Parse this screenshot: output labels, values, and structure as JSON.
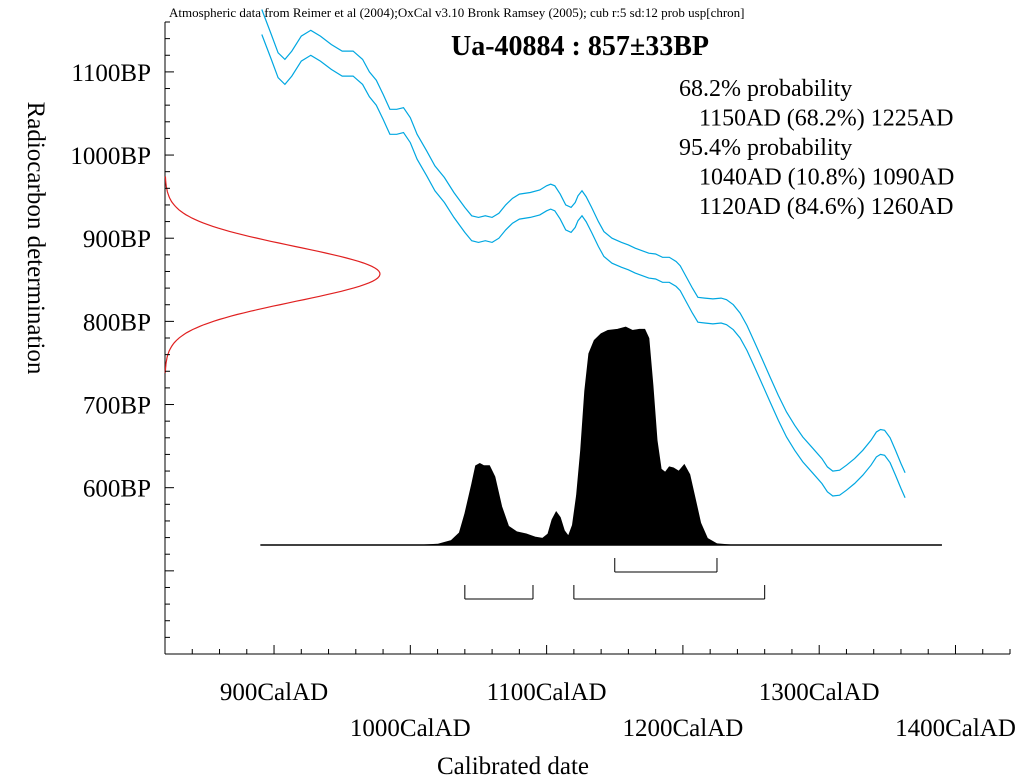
{
  "chart_data": {
    "type": "area",
    "header": "Atmospheric data from Reimer et al (2004);OxCal v3.10 Bronk Ramsey (2005); cub r:5 sd:12 prob usp[chron]",
    "title": "Ua-40884 : 857±33BP",
    "xlabel": "Calibrated date",
    "ylabel": "Radiocarbon determination",
    "xlim": [
      820,
      1440
    ],
    "ylim": [
      400,
      1160
    ],
    "x_ticks": [
      {
        "value": 900,
        "label": "900CalAD",
        "row": 0
      },
      {
        "value": 1000,
        "label": "1000CalAD",
        "row": 1
      },
      {
        "value": 1100,
        "label": "1100CalAD",
        "row": 0
      },
      {
        "value": 1200,
        "label": "1200CalAD",
        "row": 1
      },
      {
        "value": 1300,
        "label": "1300CalAD",
        "row": 0
      },
      {
        "value": 1400,
        "label": "1400CalAD",
        "row": 1
      }
    ],
    "y_ticks": [
      {
        "value": 600,
        "label": "600BP"
      },
      {
        "value": 700,
        "label": "700BP"
      },
      {
        "value": 800,
        "label": "800BP"
      },
      {
        "value": 900,
        "label": "900BP"
      },
      {
        "value": 1000,
        "label": "1000BP"
      },
      {
        "value": 1100,
        "label": "1100BP"
      }
    ],
    "probability_text": [
      {
        "text": "68.2% probability",
        "indent": false
      },
      {
        "text": "1150AD (68.2%) 1225AD",
        "indent": true
      },
      {
        "text": "95.4% probability",
        "indent": false
      },
      {
        "text": "1040AD (10.8%) 1090AD",
        "indent": true
      },
      {
        "text": "1120AD (84.6%) 1260AD",
        "indent": true
      }
    ],
    "measurement": {
      "mean_bp": 857,
      "sigma_bp": 33
    },
    "ranges_68": [
      [
        1150,
        1225
      ]
    ],
    "ranges_95": [
      [
        1040,
        1090
      ],
      [
        1120,
        1260
      ]
    ],
    "calibration_curve": [
      [
        891,
        1160
      ],
      [
        898,
        1130
      ],
      [
        903,
        1108
      ],
      [
        908,
        1100
      ],
      [
        913,
        1110
      ],
      [
        920,
        1128
      ],
      [
        927,
        1135
      ],
      [
        934,
        1128
      ],
      [
        942,
        1118
      ],
      [
        950,
        1110
      ],
      [
        958,
        1110
      ],
      [
        965,
        1100
      ],
      [
        970,
        1085
      ],
      [
        975,
        1075
      ],
      [
        980,
        1058
      ],
      [
        985,
        1040
      ],
      [
        990,
        1040
      ],
      [
        995,
        1042
      ],
      [
        1000,
        1030
      ],
      [
        1005,
        1010
      ],
      [
        1012,
        990
      ],
      [
        1018,
        972
      ],
      [
        1025,
        958
      ],
      [
        1032,
        940
      ],
      [
        1040,
        922
      ],
      [
        1045,
        912
      ],
      [
        1050,
        910
      ],
      [
        1055,
        912
      ],
      [
        1060,
        910
      ],
      [
        1065,
        915
      ],
      [
        1070,
        925
      ],
      [
        1075,
        933
      ],
      [
        1080,
        938
      ],
      [
        1088,
        940
      ],
      [
        1095,
        943
      ],
      [
        1100,
        948
      ],
      [
        1103,
        950
      ],
      [
        1106,
        948
      ],
      [
        1110,
        938
      ],
      [
        1114,
        925
      ],
      [
        1118,
        922
      ],
      [
        1121,
        928
      ],
      [
        1123,
        936
      ],
      [
        1126,
        942
      ],
      [
        1129,
        935
      ],
      [
        1133,
        922
      ],
      [
        1138,
        905
      ],
      [
        1142,
        893
      ],
      [
        1148,
        885
      ],
      [
        1155,
        880
      ],
      [
        1160,
        877
      ],
      [
        1165,
        873
      ],
      [
        1170,
        870
      ],
      [
        1175,
        867
      ],
      [
        1180,
        866
      ],
      [
        1185,
        862
      ],
      [
        1190,
        862
      ],
      [
        1195,
        857
      ],
      [
        1198,
        852
      ],
      [
        1202,
        840
      ],
      [
        1207,
        825
      ],
      [
        1211,
        814
      ],
      [
        1216,
        813
      ],
      [
        1222,
        812
      ],
      [
        1228,
        813
      ],
      [
        1232,
        811
      ],
      [
        1237,
        805
      ],
      [
        1242,
        795
      ],
      [
        1247,
        780
      ],
      [
        1252,
        762
      ],
      [
        1258,
        740
      ],
      [
        1264,
        718
      ],
      [
        1270,
        696
      ],
      [
        1276,
        676
      ],
      [
        1282,
        660
      ],
      [
        1288,
        646
      ],
      [
        1295,
        633
      ],
      [
        1302,
        620
      ],
      [
        1306,
        610
      ],
      [
        1310,
        605
      ],
      [
        1315,
        606
      ],
      [
        1320,
        612
      ],
      [
        1326,
        620
      ],
      [
        1332,
        630
      ],
      [
        1338,
        642
      ],
      [
        1342,
        652
      ],
      [
        1345,
        655
      ],
      [
        1348,
        654
      ],
      [
        1352,
        645
      ],
      [
        1356,
        630
      ],
      [
        1360,
        614
      ],
      [
        1363,
        603
      ]
    ],
    "curve_half_width_bp": 15,
    "calibrated_distribution": [
      [
        890,
        0
      ],
      [
        980,
        0
      ],
      [
        1010,
        0
      ],
      [
        1020,
        0.006
      ],
      [
        1030,
        0.04
      ],
      [
        1036,
        0.11
      ],
      [
        1040,
        0.28
      ],
      [
        1045,
        0.55
      ],
      [
        1048,
        0.72
      ],
      [
        1051,
        0.74
      ],
      [
        1054,
        0.72
      ],
      [
        1058,
        0.72
      ],
      [
        1062,
        0.62
      ],
      [
        1067,
        0.35
      ],
      [
        1072,
        0.17
      ],
      [
        1078,
        0.12
      ],
      [
        1085,
        0.1
      ],
      [
        1092,
        0.07
      ],
      [
        1097,
        0.06
      ],
      [
        1101,
        0.1
      ],
      [
        1104,
        0.23
      ],
      [
        1107,
        0.3
      ],
      [
        1110,
        0.25
      ],
      [
        1113,
        0.13
      ],
      [
        1116,
        0.08
      ],
      [
        1119,
        0.18
      ],
      [
        1122,
        0.45
      ],
      [
        1125,
        0.86
      ],
      [
        1128,
        1.4
      ],
      [
        1131,
        1.74
      ],
      [
        1135,
        1.86
      ],
      [
        1140,
        1.92
      ],
      [
        1145,
        1.95
      ],
      [
        1152,
        1.96
      ],
      [
        1158,
        1.98
      ],
      [
        1163,
        1.95
      ],
      [
        1168,
        1.96
      ],
      [
        1172,
        1.96
      ],
      [
        1175,
        1.88
      ],
      [
        1178,
        1.45
      ],
      [
        1181,
        0.95
      ],
      [
        1184,
        0.69
      ],
      [
        1187,
        0.66
      ],
      [
        1190,
        0.71
      ],
      [
        1193,
        0.7
      ],
      [
        1197,
        0.67
      ],
      [
        1201,
        0.73
      ],
      [
        1205,
        0.64
      ],
      [
        1209,
        0.42
      ],
      [
        1213,
        0.2
      ],
      [
        1218,
        0.06
      ],
      [
        1225,
        0.01
      ],
      [
        1235,
        0
      ],
      [
        1390,
        0
      ]
    ]
  }
}
